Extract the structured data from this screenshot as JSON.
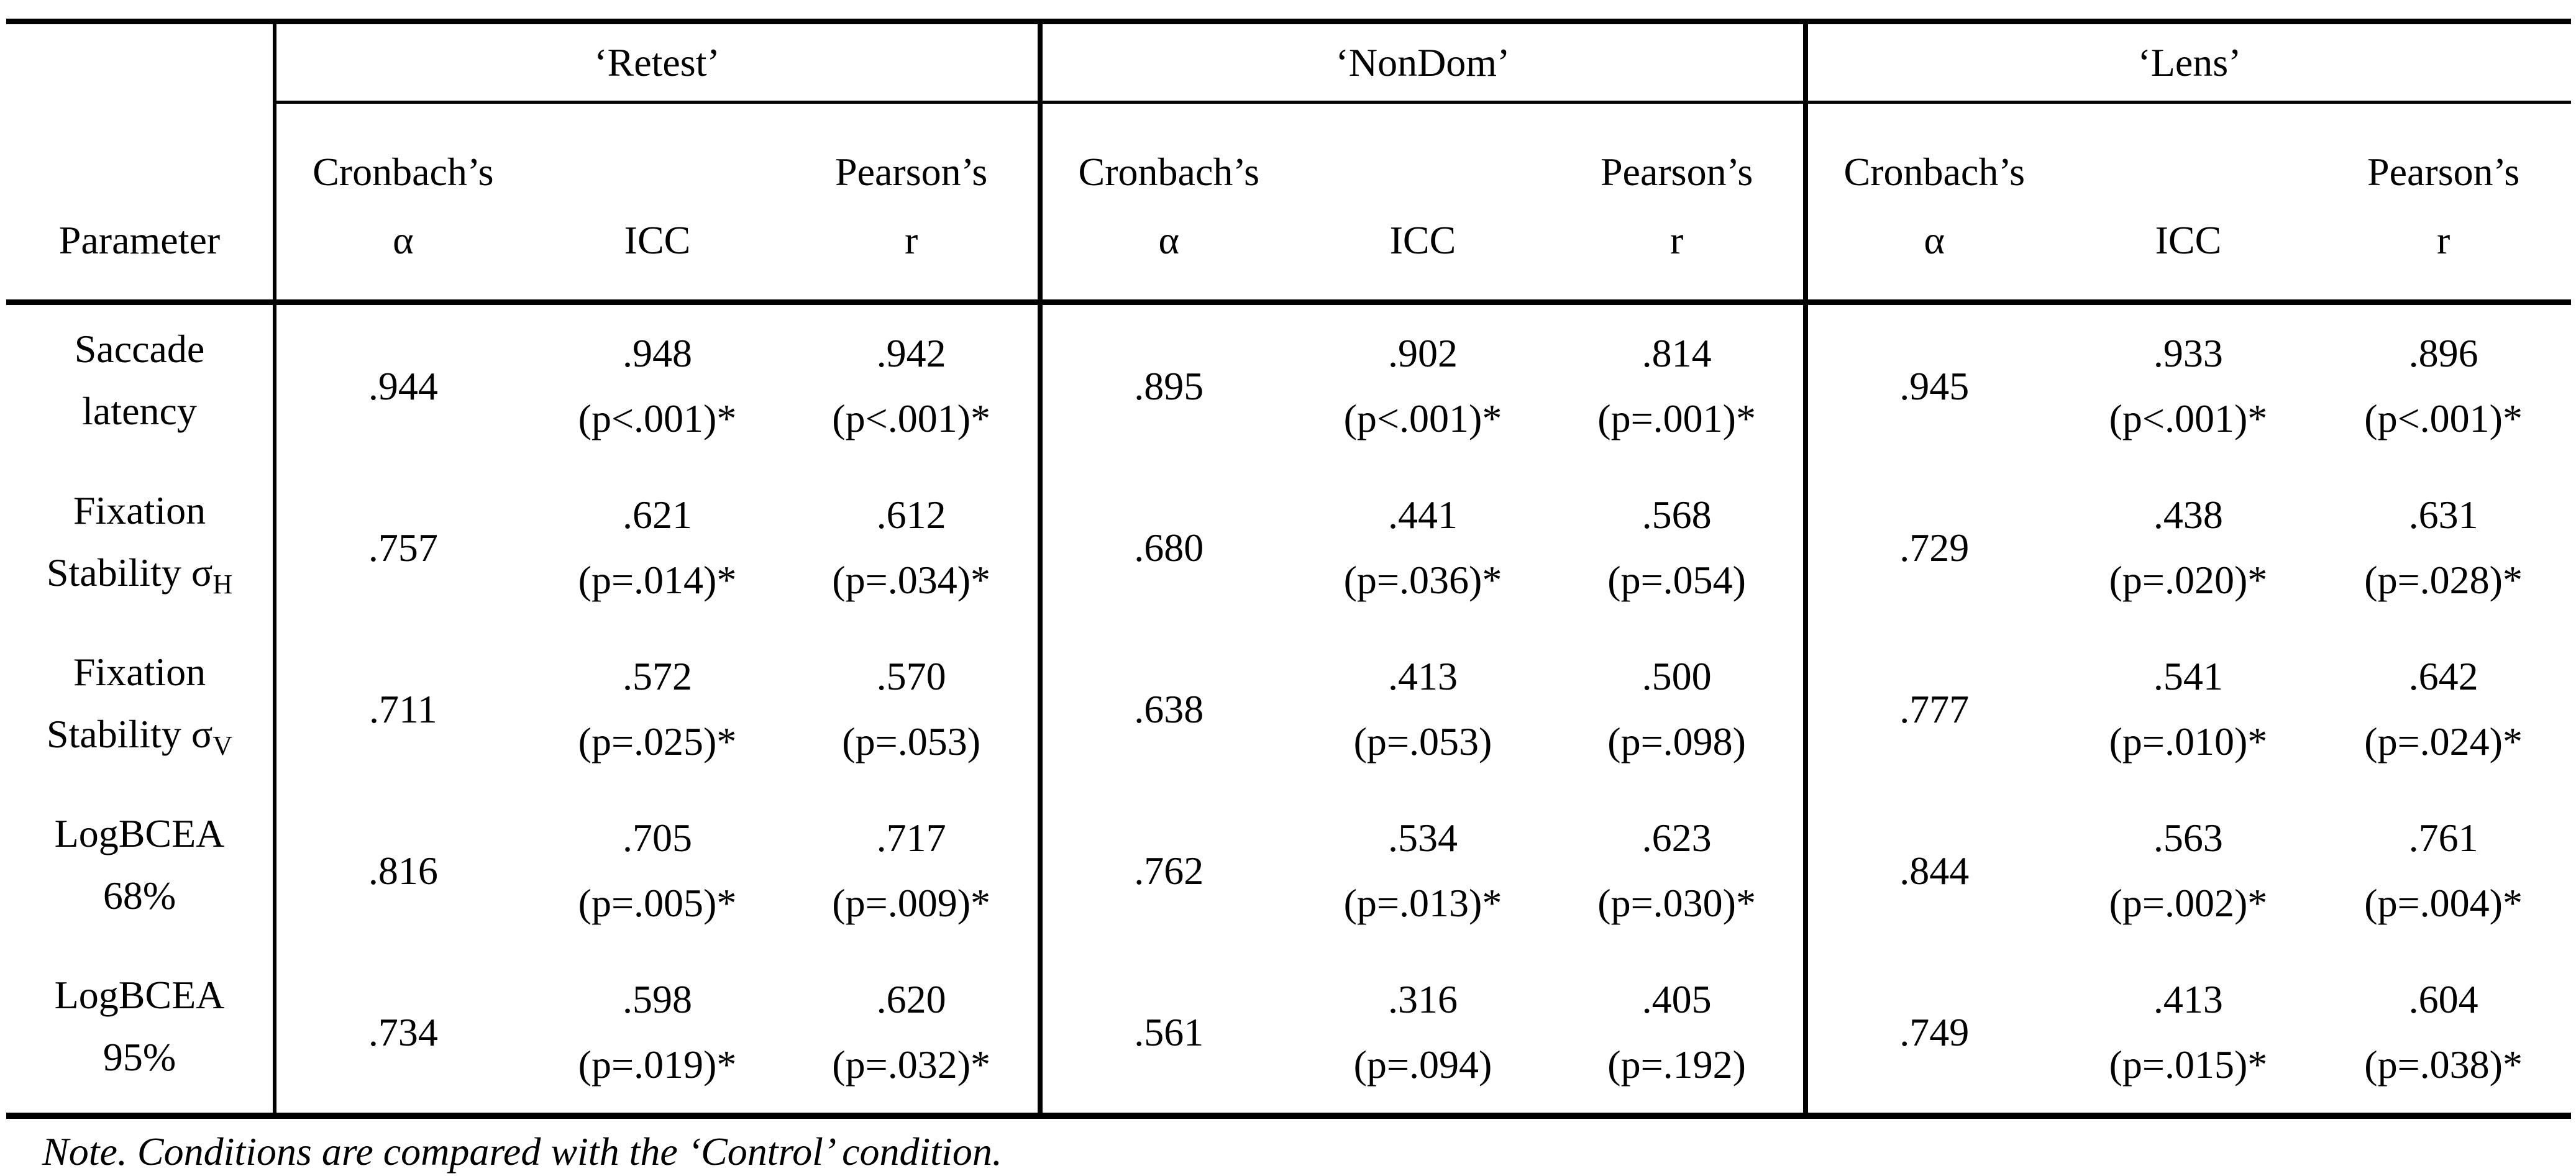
{
  "table": {
    "param_header": "Parameter",
    "conditions": {
      "retest": "‘Retest’",
      "nondom": "‘NonDom’",
      "lens": "‘Lens’"
    },
    "stat_headers": {
      "cronbach_line1": "Cronbach’s",
      "cronbach_line2": "α",
      "icc": "ICC",
      "pearson_line1": "Pearson’s",
      "pearson_line2": "r"
    },
    "rows": [
      {
        "param": {
          "l1": "Saccade",
          "l2": "latency",
          "sub": ""
        },
        "cells": [
          {
            "v": ".944",
            "p": ""
          },
          {
            "v": ".948",
            "p": "(p<.001)*"
          },
          {
            "v": ".942",
            "p": "(p<.001)*"
          },
          {
            "v": ".895",
            "p": ""
          },
          {
            "v": ".902",
            "p": "(p<.001)*"
          },
          {
            "v": ".814",
            "p": "(p=.001)*"
          },
          {
            "v": ".945",
            "p": ""
          },
          {
            "v": ".933",
            "p": "(p<.001)*"
          },
          {
            "v": ".896",
            "p": "(p<.001)*"
          }
        ]
      },
      {
        "param": {
          "l1": "Fixation",
          "l2": "Stability σ",
          "sub": "H"
        },
        "cells": [
          {
            "v": ".757",
            "p": ""
          },
          {
            "v": ".621",
            "p": "(p=.014)*"
          },
          {
            "v": ".612",
            "p": "(p=.034)*"
          },
          {
            "v": ".680",
            "p": ""
          },
          {
            "v": ".441",
            "p": "(p=.036)*"
          },
          {
            "v": ".568",
            "p": "(p=.054)"
          },
          {
            "v": ".729",
            "p": ""
          },
          {
            "v": ".438",
            "p": "(p=.020)*"
          },
          {
            "v": ".631",
            "p": "(p=.028)*"
          }
        ]
      },
      {
        "param": {
          "l1": "Fixation",
          "l2": "Stability σ",
          "sub": "V"
        },
        "cells": [
          {
            "v": ".711",
            "p": ""
          },
          {
            "v": ".572",
            "p": "(p=.025)*"
          },
          {
            "v": ".570",
            "p": "(p=.053)"
          },
          {
            "v": ".638",
            "p": ""
          },
          {
            "v": ".413",
            "p": "(p=.053)"
          },
          {
            "v": ".500",
            "p": "(p=.098)"
          },
          {
            "v": ".777",
            "p": ""
          },
          {
            "v": ".541",
            "p": "(p=.010)*"
          },
          {
            "v": ".642",
            "p": "(p=.024)*"
          }
        ]
      },
      {
        "param": {
          "l1": "LogBCEA",
          "l2": "68%",
          "sub": ""
        },
        "cells": [
          {
            "v": ".816",
            "p": ""
          },
          {
            "v": ".705",
            "p": "(p=.005)*"
          },
          {
            "v": ".717",
            "p": "(p=.009)*"
          },
          {
            "v": ".762",
            "p": ""
          },
          {
            "v": ".534",
            "p": "(p=.013)*"
          },
          {
            "v": ".623",
            "p": "(p=.030)*"
          },
          {
            "v": ".844",
            "p": ""
          },
          {
            "v": ".563",
            "p": "(p=.002)*"
          },
          {
            "v": ".761",
            "p": "(p=.004)*"
          }
        ]
      },
      {
        "param": {
          "l1": "LogBCEA",
          "l2": "95%",
          "sub": ""
        },
        "cells": [
          {
            "v": ".734",
            "p": ""
          },
          {
            "v": ".598",
            "p": "(p=.019)*"
          },
          {
            "v": ".620",
            "p": "(p=.032)*"
          },
          {
            "v": ".561",
            "p": ""
          },
          {
            "v": ".316",
            "p": "(p=.094)"
          },
          {
            "v": ".405",
            "p": "(p=.192)"
          },
          {
            "v": ".749",
            "p": ""
          },
          {
            "v": ".413",
            "p": "(p=.015)*"
          },
          {
            "v": ".604",
            "p": "(p=.038)*"
          }
        ]
      }
    ]
  },
  "note": "Note. Conditions are compared with the ‘Control’ condition."
}
